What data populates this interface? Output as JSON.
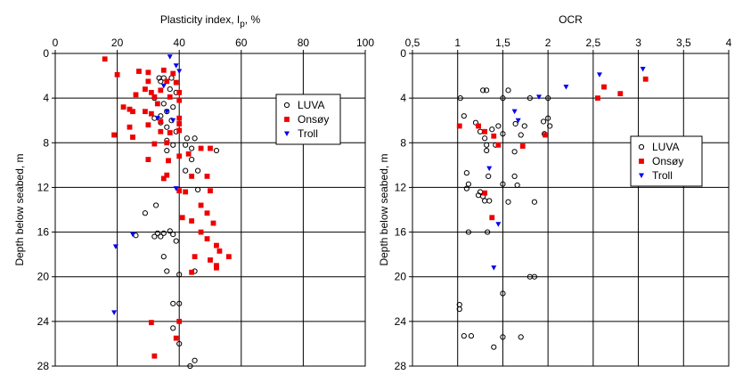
{
  "chart_data": [
    {
      "type": "scatter",
      "title": "",
      "xlabel": "Plasticity index, Ip, %",
      "xlabel_main": "Plasticity index, I",
      "xlabel_sub": "p",
      "xlabel_tail": ", %",
      "ylabel": "Depth below seabed, m",
      "xlim": [
        0,
        100
      ],
      "ylim": [
        0,
        28
      ],
      "y_inverted": true,
      "x_axis_position": "top",
      "xticks": [
        0,
        20,
        40,
        60,
        80,
        100
      ],
      "yticks": [
        0,
        4,
        8,
        12,
        16,
        20,
        24,
        28
      ],
      "xtick_labels": [
        "0",
        "20",
        "40",
        "60",
        "80",
        "100"
      ],
      "ytick_labels": [
        "0",
        "4",
        "8",
        "12",
        "16",
        "20",
        "24",
        "28"
      ],
      "grid": true,
      "legend_position": "upper-right",
      "series": [
        {
          "name": "LUVA",
          "marker": "circle-open",
          "color": "#000000",
          "points": [
            [
              33.5,
              2.2
            ],
            [
              35,
              2.2
            ],
            [
              37.5,
              2.2
            ],
            [
              34,
              2.5
            ],
            [
              37,
              3.2
            ],
            [
              39,
              3.5
            ],
            [
              32,
              4
            ],
            [
              35,
              4.5
            ],
            [
              38,
              4.8
            ],
            [
              36,
              5.2
            ],
            [
              34,
              5.6
            ],
            [
              32,
              5.8
            ],
            [
              37.5,
              6
            ],
            [
              34,
              6.2
            ],
            [
              36,
              6.6
            ],
            [
              39,
              7
            ],
            [
              36,
              7.8
            ],
            [
              38,
              8.2
            ],
            [
              42.5,
              7.6
            ],
            [
              45,
              7.6
            ],
            [
              42,
              8.2
            ],
            [
              44,
              8.5
            ],
            [
              36,
              8.7
            ],
            [
              52,
              8.7
            ],
            [
              44,
              9.5
            ],
            [
              42,
              10.5
            ],
            [
              46,
              10.5
            ],
            [
              46,
              12.2
            ],
            [
              32.5,
              13.6
            ],
            [
              29,
              14.3
            ],
            [
              37,
              15.9
            ],
            [
              33,
              16.1
            ],
            [
              35,
              16.1
            ],
            [
              38,
              16.2
            ],
            [
              26,
              16.3
            ],
            [
              32,
              16.4
            ],
            [
              34,
              16.4
            ],
            [
              39,
              16.8
            ],
            [
              35,
              18.2
            ],
            [
              36,
              19.5
            ],
            [
              40,
              19.8
            ],
            [
              45,
              19.5
            ],
            [
              38,
              22.4
            ],
            [
              40,
              22.4
            ],
            [
              38,
              24.6
            ],
            [
              40,
              26
            ],
            [
              45,
              27.5
            ],
            [
              43.5,
              28
            ]
          ]
        },
        {
          "name": "Onsøy",
          "marker": "square",
          "color": "#ee0000",
          "points": [
            [
              16,
              0.5
            ],
            [
              20,
              1.9
            ],
            [
              27,
              1.6
            ],
            [
              30,
              1.7
            ],
            [
              35,
              1.5
            ],
            [
              38,
              1.8
            ],
            [
              30,
              2.5
            ],
            [
              36,
              2.5
            ],
            [
              39,
              2.6
            ],
            [
              26,
              3.7
            ],
            [
              29,
              3.2
            ],
            [
              31,
              3.5
            ],
            [
              32,
              3.9
            ],
            [
              34,
              3.3
            ],
            [
              37,
              3.9
            ],
            [
              40,
              3.5
            ],
            [
              40,
              4.2
            ],
            [
              33,
              4.5
            ],
            [
              22,
              4.8
            ],
            [
              25,
              5.2
            ],
            [
              24,
              5
            ],
            [
              29,
              5.2
            ],
            [
              31,
              5.4
            ],
            [
              30,
              6.4
            ],
            [
              34,
              6.1
            ],
            [
              40,
              5.8
            ],
            [
              40,
              6.3
            ],
            [
              24,
              6.6
            ],
            [
              34,
              7
            ],
            [
              37,
              7.1
            ],
            [
              40,
              6.9
            ],
            [
              25,
              7.5
            ],
            [
              19,
              7.3
            ],
            [
              32,
              8.1
            ],
            [
              36,
              8
            ],
            [
              30,
              9.5
            ],
            [
              36.5,
              9.6
            ],
            [
              40,
              9.2
            ],
            [
              43,
              9
            ],
            [
              47,
              8.5
            ],
            [
              50,
              8.5
            ],
            [
              36,
              10.9
            ],
            [
              35,
              11.2
            ],
            [
              44,
              11
            ],
            [
              49,
              11
            ],
            [
              42,
              12.4
            ],
            [
              50,
              12.3
            ],
            [
              40,
              12.3
            ],
            [
              47,
              13.6
            ],
            [
              41,
              14.7
            ],
            [
              49,
              14.3
            ],
            [
              44,
              15
            ],
            [
              51,
              15.2
            ],
            [
              47,
              16
            ],
            [
              49,
              16.6
            ],
            [
              52,
              17.2
            ],
            [
              56,
              18.2
            ],
            [
              53,
              17.7
            ],
            [
              45,
              18.2
            ],
            [
              50,
              18.5
            ],
            [
              52,
              19
            ],
            [
              52,
              19.2
            ],
            [
              44,
              19.6
            ],
            [
              31,
              24.1
            ],
            [
              40,
              24
            ],
            [
              39,
              25.5
            ],
            [
              32,
              27.1
            ]
          ]
        },
        {
          "name": "Troll",
          "marker": "triangle-down",
          "color": "#0000ee",
          "points": [
            [
              37,
              0.3
            ],
            [
              39,
              1.1
            ],
            [
              40,
              1.6
            ],
            [
              35,
              2.9
            ],
            [
              36,
              5.2
            ],
            [
              33,
              5.8
            ],
            [
              38,
              6
            ],
            [
              39,
              12.1
            ],
            [
              25,
              16.2
            ],
            [
              19.5,
              17.3
            ],
            [
              19,
              23.2
            ]
          ]
        }
      ]
    },
    {
      "type": "scatter",
      "title": "",
      "xlabel": "OCR",
      "ylabel": "Depth below seabed, m",
      "xlim": [
        0.5,
        4
      ],
      "ylim": [
        0,
        28
      ],
      "y_inverted": true,
      "x_axis_position": "top",
      "xticks": [
        0.5,
        1,
        1.5,
        2,
        2.5,
        3,
        3.5,
        4
      ],
      "yticks": [
        0,
        4,
        8,
        12,
        16,
        20,
        24,
        28
      ],
      "xtick_labels": [
        "0,5",
        "1",
        "1,5",
        "2",
        "2,5",
        "3",
        "3,5",
        "4"
      ],
      "ytick_labels": [
        "0",
        "4",
        "8",
        "12",
        "16",
        "20",
        "24",
        "28"
      ],
      "grid": true,
      "legend_position": "right",
      "series": [
        {
          "name": "LUVA",
          "marker": "circle-open",
          "color": "#000000",
          "points": [
            [
              1.28,
              3.3
            ],
            [
              1.32,
              3.3
            ],
            [
              1.56,
              3.3
            ],
            [
              1.03,
              4
            ],
            [
              1.5,
              4
            ],
            [
              1.8,
              4
            ],
            [
              2.0,
              4
            ],
            [
              1.07,
              5.6
            ],
            [
              1.2,
              6.2
            ],
            [
              1.38,
              6.8
            ],
            [
              1.45,
              6.5
            ],
            [
              1.64,
              6.3
            ],
            [
              1.74,
              6.5
            ],
            [
              1.95,
              6.1
            ],
            [
              2.0,
              5.8
            ],
            [
              2.02,
              6.5
            ],
            [
              1.25,
              7
            ],
            [
              1.3,
              7.6
            ],
            [
              1.5,
              7.2
            ],
            [
              1.7,
              7.3
            ],
            [
              1.32,
              8.2
            ],
            [
              1.32,
              8.7
            ],
            [
              1.42,
              8.2
            ],
            [
              1.63,
              8.8
            ],
            [
              1.96,
              7.2
            ],
            [
              1.1,
              10.7
            ],
            [
              1.34,
              11
            ],
            [
              1.63,
              11
            ],
            [
              1.12,
              11.7
            ],
            [
              1.5,
              11.7
            ],
            [
              1.66,
              11.8
            ],
            [
              1.1,
              12.1
            ],
            [
              1.25,
              12.4
            ],
            [
              1.23,
              12.7
            ],
            [
              1.28,
              12.8
            ],
            [
              1.3,
              13.2
            ],
            [
              1.35,
              13.2
            ],
            [
              1.56,
              13.3
            ],
            [
              1.85,
              13.3
            ],
            [
              1.12,
              16
            ],
            [
              1.33,
              16
            ],
            [
              1.8,
              20
            ],
            [
              1.85,
              20
            ],
            [
              1.5,
              21.5
            ],
            [
              1.02,
              22.5
            ],
            [
              1.02,
              22.9
            ],
            [
              1.07,
              25.3
            ],
            [
              1.15,
              25.3
            ],
            [
              1.5,
              25.4
            ],
            [
              1.7,
              25.4
            ],
            [
              1.4,
              26.3
            ]
          ]
        },
        {
          "name": "Onsøy",
          "marker": "square",
          "color": "#ee0000",
          "points": [
            [
              2.62,
              3
            ],
            [
              2.8,
              3.6
            ],
            [
              3.08,
              2.3
            ],
            [
              2.55,
              4
            ],
            [
              1.02,
              6.5
            ],
            [
              1.23,
              6.5
            ],
            [
              1.3,
              7
            ],
            [
              1.4,
              7.4
            ],
            [
              1.97,
              7.3
            ],
            [
              1.72,
              8.3
            ],
            [
              1.45,
              8.2
            ],
            [
              1.3,
              12.5
            ],
            [
              1.38,
              14.7
            ]
          ]
        },
        {
          "name": "Troll",
          "marker": "triangle-down",
          "color": "#0000ee",
          "points": [
            [
              3.05,
              1.4
            ],
            [
              2.57,
              1.9
            ],
            [
              2.2,
              3
            ],
            [
              1.9,
              3.9
            ],
            [
              1.63,
              5.2
            ],
            [
              1.67,
              6
            ],
            [
              1.35,
              10.3
            ],
            [
              1.45,
              15.3
            ],
            [
              1.4,
              19.2
            ]
          ]
        }
      ]
    }
  ]
}
